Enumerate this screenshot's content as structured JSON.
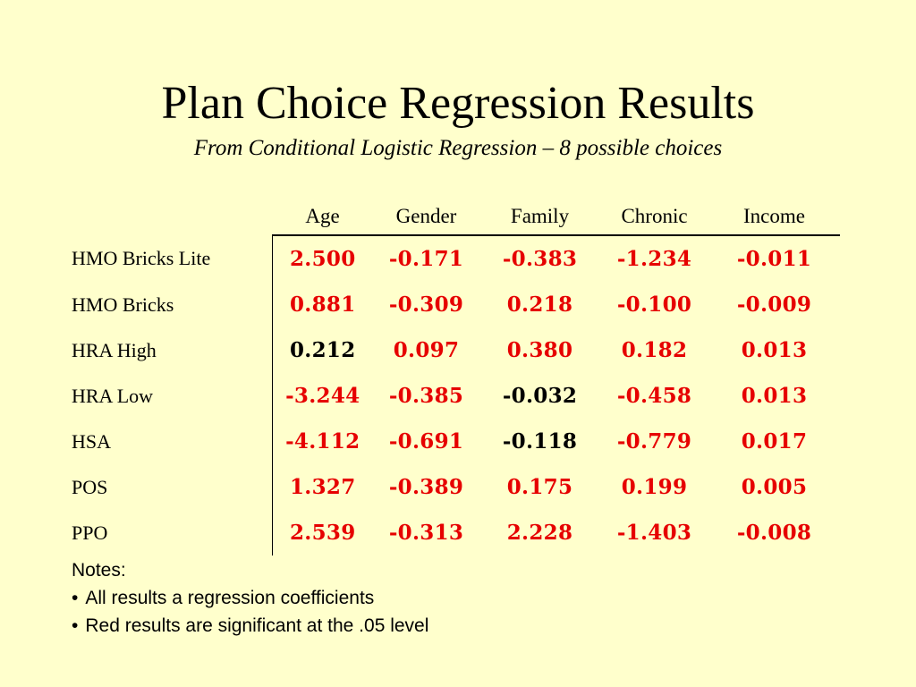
{
  "slide": {
    "title": "Plan Choice Regression Results",
    "subtitle": "From Conditional Logistic Regression – 8 possible choices"
  },
  "table": {
    "columns": [
      "Age",
      "Gender",
      "Family",
      "Chronic",
      "Income"
    ],
    "rows": [
      {
        "label": "HMO Bricks Lite",
        "values": [
          "2.500",
          "-0.171",
          "-0.383",
          "-1.234",
          "-0.011"
        ],
        "significant": [
          true,
          true,
          true,
          true,
          true
        ]
      },
      {
        "label": "HMO Bricks",
        "values": [
          "0.881",
          "-0.309",
          "0.218",
          "-0.100",
          "-0.009"
        ],
        "significant": [
          true,
          true,
          true,
          true,
          true
        ]
      },
      {
        "label": "HRA High",
        "values": [
          "0.212",
          "0.097",
          "0.380",
          "0.182",
          "0.013"
        ],
        "significant": [
          false,
          true,
          true,
          true,
          true
        ]
      },
      {
        "label": "HRA Low",
        "values": [
          "-3.244",
          "-0.385",
          "-0.032",
          "-0.458",
          "0.013"
        ],
        "significant": [
          true,
          true,
          false,
          true,
          true
        ]
      },
      {
        "label": "HSA",
        "values": [
          "-4.112",
          "-0.691",
          "-0.118",
          "-0.779",
          "0.017"
        ],
        "significant": [
          true,
          true,
          false,
          true,
          true
        ]
      },
      {
        "label": "POS",
        "values": [
          "1.327",
          "-0.389",
          "0.175",
          "0.199",
          "0.005"
        ],
        "significant": [
          true,
          true,
          true,
          true,
          true
        ]
      },
      {
        "label": "PPO",
        "values": [
          "2.539",
          "-0.313",
          "2.228",
          "-1.403",
          "-0.008"
        ],
        "significant": [
          true,
          true,
          true,
          true,
          true
        ]
      }
    ]
  },
  "notes": {
    "heading": "Notes:",
    "bullet_glyph": "•",
    "items": [
      "All results a regression coefficients",
      "Red results are significant at the .05 level"
    ]
  },
  "colors": {
    "background": "#ffffcc",
    "significant": "#e60000",
    "nonsignificant": "#000000"
  }
}
